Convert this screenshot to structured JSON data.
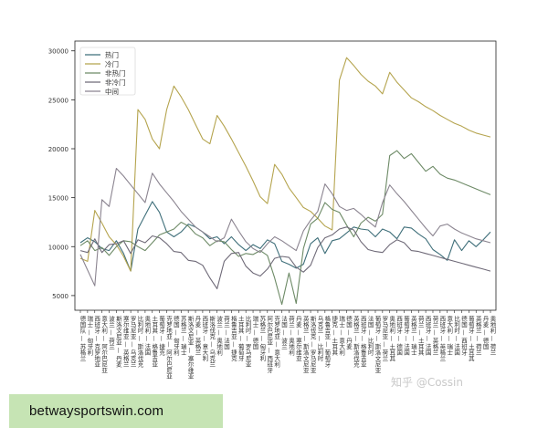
{
  "banner": {
    "text": "betwaysportswin.com"
  },
  "watermark": {
    "text": "知乎 @Cossin"
  },
  "chart_data": {
    "type": "line",
    "title": "",
    "xlabel": "",
    "ylabel": "",
    "ylim": [
      3500,
      31000
    ],
    "yticks": [
      5000,
      10000,
      15000,
      20000,
      25000,
      30000
    ],
    "legend_position": "top-left",
    "categories": [
      "德国队 — 苏格兰",
      "瑞士 — 匈牙利",
      "西班牙 — 克罗地亚",
      "意大利 — 阿尔巴尼亚",
      "波兰 — 荷兰",
      "斯洛文尼亚 — 丹麦",
      "塞尔维亚 — 英格兰",
      "罗马尼亚 — 乌克兰",
      "比利时 — 斯洛伐克",
      "奥地利 — 法国",
      "土耳其 — 格鲁吉亚",
      "葡萄牙 — 捷克",
      "克罗地亚 — 阿尔巴尼亚",
      "德国 — 匈牙利",
      "苏格兰 — 瑞士",
      "斯洛文尼亚 — 塞尔维亚",
      "丹麦 — 英格兰",
      "西班牙 — 意大利",
      "斯洛伐克 — 乌克兰",
      "波兰 — 奥地利",
      "荷兰 — 法国",
      "格鲁吉亚 — 捷克",
      "土耳其 — 葡萄牙",
      "比利时 — 罗马尼亚",
      "瑞士 — 德国",
      "苏格兰 — 匈牙利",
      "阿尔巴尼亚 — 西班牙",
      "克罗地亚 — 意大利",
      "法国 — 波兰",
      "荷兰 — 奥地利",
      "丹麦 — 塞尔维亚",
      "英格兰 — 斯洛文尼亚",
      "斯洛伐克 — 罗马尼亚",
      "乌克兰 — 比利时",
      "格鲁吉亚 — 葡萄牙",
      "捷克 — 土耳其",
      "瑞士 — 意大利",
      "德国 — 丹麦",
      "英格兰 — 斯洛伐克",
      "西班牙 — 格鲁吉亚",
      "法国 — 比利时",
      "葡萄牙 — 斯洛文尼亚",
      "罗马尼亚 — 荷兰",
      "奥地利 — 土耳其",
      "西班牙 — 德国",
      "葡萄牙 — 法国",
      "英格兰 — 瑞士",
      "荷兰 — 土耳其",
      "西班牙 — 法国",
      "荷兰 — 英格兰",
      "西班牙 — 英格兰",
      "意大利 — 瑞士",
      "比利时 — 法国",
      "德国 — 西班牙",
      "葡萄牙 — 土耳其",
      "英格兰 — 荷兰",
      "丹麦 — 德国",
      "奥地利 — 荷兰"
    ],
    "series": [
      {
        "name": "热门",
        "color": "#3f6f7a",
        "values": [
          10400,
          10900,
          10500,
          9800,
          9600,
          10600,
          9300,
          7500,
          11800,
          13200,
          14600,
          13500,
          11500,
          11000,
          11500,
          12300,
          12000,
          11500,
          10800,
          11000,
          10300,
          11000,
          10200,
          9600,
          10200,
          9800,
          10700,
          10300,
          8500,
          8200,
          7800,
          8200,
          10300,
          10900,
          9300,
          10600,
          10800,
          11400,
          12000,
          11800,
          11700,
          11000,
          11800,
          11500,
          10800,
          12000,
          11900,
          11300,
          10800,
          9700,
          9200,
          8600,
          10700,
          9600,
          10600,
          10000,
          10700,
          11500
        ]
      },
      {
        "name": "冷门",
        "color": "#b5a44e",
        "values": [
          8800,
          8500,
          13700,
          12400,
          11000,
          10200,
          9000,
          7500,
          24000,
          23000,
          21000,
          20000,
          24000,
          26400,
          25300,
          24000,
          22500,
          21000,
          20500,
          23400,
          22300,
          21000,
          19600,
          18200,
          16700,
          15100,
          14400,
          18400,
          17400,
          16000,
          15000,
          14000,
          13600,
          12900,
          12100,
          11700,
          27000,
          29300,
          28500,
          27600,
          26900,
          26400,
          25600,
          27800,
          26800,
          26000,
          25200,
          24800,
          24300,
          23900,
          23400,
          23000,
          22600,
          22300,
          21900,
          21600,
          21400,
          21200
        ]
      },
      {
        "name": "非热门",
        "color": "#6d8a66",
        "values": [
          10100,
          10600,
          9600,
          9900,
          9100,
          10000,
          10600,
          10500,
          10000,
          9600,
          10400,
          11200,
          11500,
          11800,
          12500,
          12100,
          11300,
          10900,
          10100,
          10600,
          10500,
          9700,
          9000,
          9300,
          9200,
          9600,
          9100,
          6800,
          4100,
          7300,
          4200,
          9800,
          12300,
          12900,
          14500,
          13800,
          13500,
          12200,
          11000,
          12400,
          13000,
          12600,
          13300,
          19300,
          19800,
          19000,
          19500,
          18600,
          17700,
          18200,
          17400,
          17000,
          16800,
          16500,
          16200,
          15900,
          15600,
          15300
        ]
      },
      {
        "name": "非冷门",
        "color": "#6f6a78",
        "values": [
          9600,
          9400,
          10800,
          9400,
          10200,
          10300,
          10600,
          9300,
          10700,
          10400,
          11100,
          10900,
          10300,
          9500,
          9400,
          8600,
          8500,
          8100,
          6800,
          5700,
          8500,
          9300,
          9400,
          8000,
          7300,
          7000,
          7700,
          8800,
          9000,
          8900,
          7900,
          7400,
          8100,
          9900,
          10900,
          11200,
          11800,
          12000,
          11700,
          10500,
          9700,
          9500,
          9400,
          10200,
          10700,
          10400,
          9600,
          9500,
          9300,
          9100,
          8900,
          8700,
          8500,
          8300,
          8100,
          7900,
          7700,
          7500
        ]
      },
      {
        "name": "中间",
        "color": "#8b8490",
        "values": [
          9200,
          7600,
          6000,
          14800,
          14100,
          18000,
          17200,
          16300,
          15400,
          14500,
          17500,
          16400,
          15500,
          14600,
          13600,
          12800,
          12000,
          11500,
          11000,
          10500,
          10900,
          12800,
          11600,
          10500,
          9800,
          9400,
          10300,
          11000,
          10600,
          10100,
          9600,
          11600,
          12700,
          13600,
          16400,
          15400,
          14100,
          13700,
          13900,
          13300,
          12600,
          12000,
          14500,
          16300,
          15400,
          14600,
          13700,
          12800,
          11900,
          11100,
          12100,
          12300,
          11800,
          11400,
          11100,
          10800,
          10600,
          10400
        ]
      }
    ]
  }
}
